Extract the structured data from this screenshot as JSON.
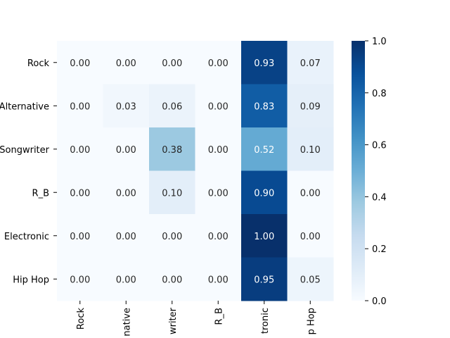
{
  "chart_data": {
    "type": "heatmap",
    "title": "",
    "xlabel": "",
    "ylabel": "",
    "row_labels": [
      "Rock",
      "Alternative",
      "Songwriter",
      "R_B",
      "Electronic",
      "Hip Hop"
    ],
    "col_labels": [
      "Rock",
      "native",
      "writer",
      "R_B",
      "tronic",
      "p Hop"
    ],
    "values": [
      [
        0.0,
        0.0,
        0.0,
        0.0,
        0.93,
        0.07
      ],
      [
        0.0,
        0.03,
        0.06,
        0.0,
        0.83,
        0.09
      ],
      [
        0.0,
        0.0,
        0.38,
        0.0,
        0.52,
        0.1
      ],
      [
        0.0,
        0.0,
        0.1,
        0.0,
        0.9,
        0.0
      ],
      [
        0.0,
        0.0,
        0.0,
        0.0,
        1.0,
        0.0
      ],
      [
        0.0,
        0.0,
        0.0,
        0.0,
        0.95,
        0.05
      ]
    ],
    "value_format": "0.00",
    "colormap": "Blues",
    "color_range": [
      0.0,
      1.0
    ],
    "colorbar_ticks": [
      "0.0",
      "0.2",
      "0.4",
      "0.6",
      "0.8",
      "1.0"
    ],
    "colorbar_position": "right",
    "grid": false
  }
}
